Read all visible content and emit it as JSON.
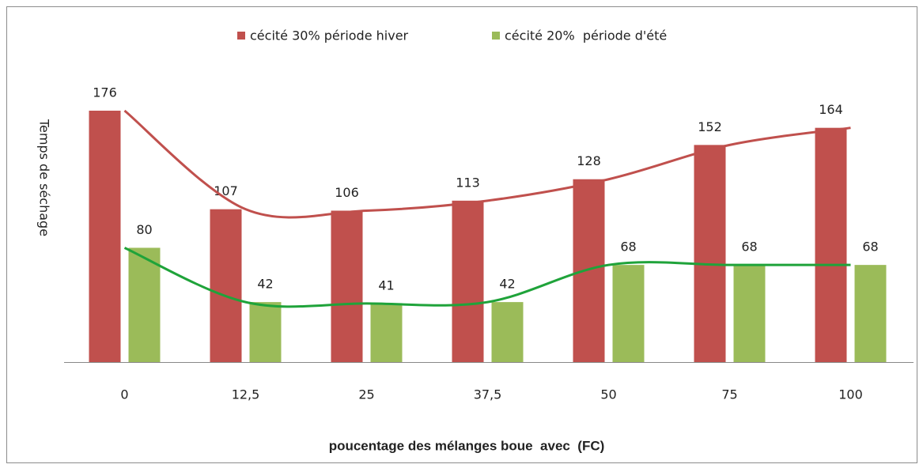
{
  "chart_data": {
    "type": "bar",
    "x_label": "poucentage des mélanges boue  avec  (FC)",
    "y_label": "Temps de séchage",
    "categories": [
      "0",
      "12,5",
      "25",
      "37,5",
      "50",
      "75",
      "100"
    ],
    "series": [
      {
        "name": "cécité 30% période hiver",
        "color": "#c0504d",
        "line_color": "#c0504d",
        "values": [
          176,
          107,
          106,
          113,
          128,
          152,
          164
        ]
      },
      {
        "name": "cécité 20%  période d'été",
        "color": "#9bbb59",
        "line_color": "#1fa33a",
        "values": [
          80,
          42,
          41,
          42,
          68,
          68,
          68
        ]
      }
    ],
    "legend": "top"
  }
}
